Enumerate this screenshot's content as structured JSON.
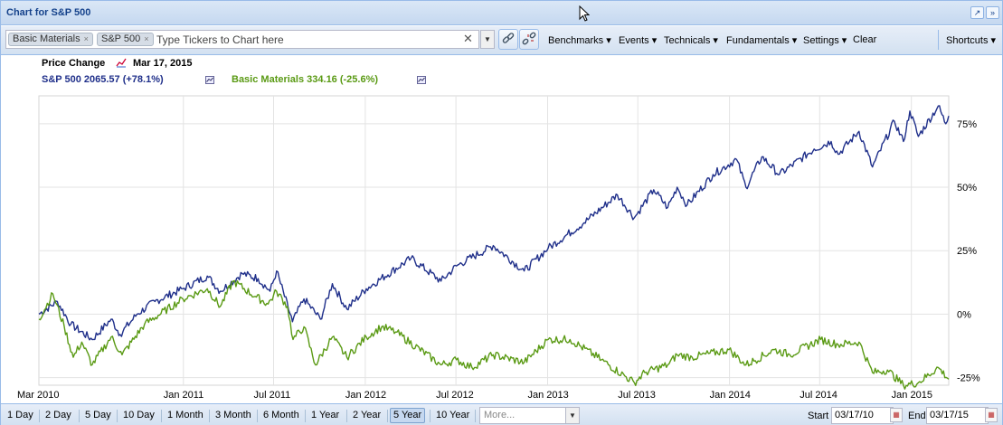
{
  "window": {
    "title": "Chart for S&P 500"
  },
  "toolbar": {
    "chips": [
      "Basic Materials",
      "S&P 500"
    ],
    "ticker_placeholder": "Type Tickers to Chart here",
    "menus": [
      "Benchmarks",
      "Events",
      "Technicals",
      "Fundamentals",
      "Settings"
    ],
    "clear_label": "Clear",
    "shortcuts_label": "Shortcuts"
  },
  "legend": {
    "mode_label": "Price Change",
    "date": "Mar 17, 2015",
    "sp500": "S&P 500 2065.57 (+78.1%)",
    "basic_materials": "Basic Materials 334.16 (-25.6%)"
  },
  "bottom": {
    "ranges": [
      "1 Day",
      "2 Day",
      "5 Day",
      "10 Day",
      "1 Month",
      "3 Month",
      "6 Month",
      "1 Year",
      "2 Year",
      "5 Year",
      "10 Year"
    ],
    "active_range": "5 Year",
    "more_placeholder": "More...",
    "start_label": "Start",
    "start_date": "03/17/10",
    "end_label": "End",
    "end_date": "03/17/15"
  },
  "chart_data": {
    "type": "line",
    "title": "",
    "x_tick_labels": [
      "Mar 2010",
      "Jan 2011",
      "Jul 2011",
      "Jan 2012",
      "Jul 2012",
      "Jan 2013",
      "Jul 2013",
      "Jan 2014",
      "Jul 2014",
      "Jan 2015"
    ],
    "y_tick_labels": [
      "75%",
      "50%",
      "25%",
      "0%",
      "-25%"
    ],
    "y_ticks": [
      75,
      50,
      25,
      0,
      -25
    ],
    "ylim": [
      -28,
      86
    ],
    "xlim": [
      "2010-03-17",
      "2015-03-17"
    ],
    "y_axis_position": "right",
    "grid": true,
    "colors": {
      "sp500": "#1f2f8a",
      "basic_materials": "#5a9a14"
    },
    "series": [
      {
        "name": "S&P 500",
        "key": "sp500",
        "points": [
          [
            "2010-03-17",
            0
          ],
          [
            "2010-04-23",
            5
          ],
          [
            "2010-05-20",
            -4
          ],
          [
            "2010-07-02",
            -10
          ],
          [
            "2010-08-09",
            -2
          ],
          [
            "2010-08-27",
            -8
          ],
          [
            "2010-09-30",
            0
          ],
          [
            "2010-11-05",
            5
          ],
          [
            "2010-12-31",
            10
          ],
          [
            "2011-02-18",
            15
          ],
          [
            "2011-03-16",
            9
          ],
          [
            "2011-04-29",
            16
          ],
          [
            "2011-05-31",
            14
          ],
          [
            "2011-06-24",
            9
          ],
          [
            "2011-07-07",
            17
          ],
          [
            "2011-08-08",
            -3
          ],
          [
            "2011-08-31",
            6
          ],
          [
            "2011-10-03",
            -2
          ],
          [
            "2011-10-27",
            12
          ],
          [
            "2011-11-25",
            2
          ],
          [
            "2012-01-03",
            10
          ],
          [
            "2012-04-02",
            22
          ],
          [
            "2012-06-01",
            13
          ],
          [
            "2012-07-02",
            19
          ],
          [
            "2012-09-14",
            27
          ],
          [
            "2012-11-15",
            17
          ],
          [
            "2013-01-02",
            26
          ],
          [
            "2013-03-15",
            36
          ],
          [
            "2013-05-21",
            47
          ],
          [
            "2013-06-24",
            38
          ],
          [
            "2013-08-02",
            49
          ],
          [
            "2013-08-30",
            42
          ],
          [
            "2013-09-18",
            50
          ],
          [
            "2013-10-08",
            43
          ],
          [
            "2013-11-29",
            55
          ],
          [
            "2014-01-15",
            61
          ],
          [
            "2014-02-03",
            50
          ],
          [
            "2014-03-07",
            62
          ],
          [
            "2014-04-11",
            55
          ],
          [
            "2014-06-20",
            65
          ],
          [
            "2014-07-24",
            68
          ],
          [
            "2014-08-07",
            63
          ],
          [
            "2014-09-18",
            72
          ],
          [
            "2014-10-15",
            58
          ],
          [
            "2014-11-28",
            76
          ],
          [
            "2014-12-16",
            68
          ],
          [
            "2014-12-29",
            80
          ],
          [
            "2015-01-15",
            70
          ],
          [
            "2015-02-24",
            82
          ],
          [
            "2015-03-11",
            75
          ],
          [
            "2015-03-17",
            78.1
          ]
        ]
      },
      {
        "name": "Basic Materials",
        "key": "basic_materials",
        "points": [
          [
            "2010-03-17",
            -2
          ],
          [
            "2010-04-14",
            8
          ],
          [
            "2010-05-07",
            -5
          ],
          [
            "2010-05-25",
            -17
          ],
          [
            "2010-06-11",
            -11
          ],
          [
            "2010-07-02",
            -20
          ],
          [
            "2010-08-09",
            -9
          ],
          [
            "2010-08-31",
            -16
          ],
          [
            "2010-10-15",
            -4
          ],
          [
            "2010-12-31",
            6
          ],
          [
            "2011-02-18",
            10
          ],
          [
            "2011-03-16",
            3
          ],
          [
            "2011-04-11",
            13
          ],
          [
            "2011-05-25",
            7
          ],
          [
            "2011-06-20",
            4
          ],
          [
            "2011-07-07",
            9
          ],
          [
            "2011-07-29",
            3
          ],
          [
            "2011-08-09",
            -10
          ],
          [
            "2011-08-31",
            -5
          ],
          [
            "2011-09-23",
            -20
          ],
          [
            "2011-10-27",
            -9
          ],
          [
            "2011-11-25",
            -17
          ],
          [
            "2012-01-03",
            -9
          ],
          [
            "2012-02-03",
            -5
          ],
          [
            "2012-03-02",
            -7
          ],
          [
            "2012-06-01",
            -20
          ],
          [
            "2012-07-02",
            -18
          ],
          [
            "2012-08-02",
            -21
          ],
          [
            "2012-09-14",
            -16
          ],
          [
            "2012-11-15",
            -19
          ],
          [
            "2013-01-02",
            -10
          ],
          [
            "2013-02-15",
            -10
          ],
          [
            "2013-04-19",
            -18
          ],
          [
            "2013-06-24",
            -27
          ],
          [
            "2013-07-15",
            -23
          ],
          [
            "2013-08-30",
            -20
          ],
          [
            "2013-09-18",
            -16
          ],
          [
            "2013-10-18",
            -17
          ],
          [
            "2013-12-31",
            -14
          ],
          [
            "2014-02-03",
            -20
          ],
          [
            "2014-04-01",
            -14
          ],
          [
            "2014-05-02",
            -16
          ],
          [
            "2014-07-03",
            -10
          ],
          [
            "2014-08-07",
            -12
          ],
          [
            "2014-09-18",
            -11
          ],
          [
            "2014-10-15",
            -23
          ],
          [
            "2014-11-14",
            -22
          ],
          [
            "2014-12-16",
            -28
          ],
          [
            "2015-01-15",
            -27
          ],
          [
            "2015-02-24",
            -21
          ],
          [
            "2015-03-17",
            -25.6
          ]
        ]
      }
    ]
  }
}
